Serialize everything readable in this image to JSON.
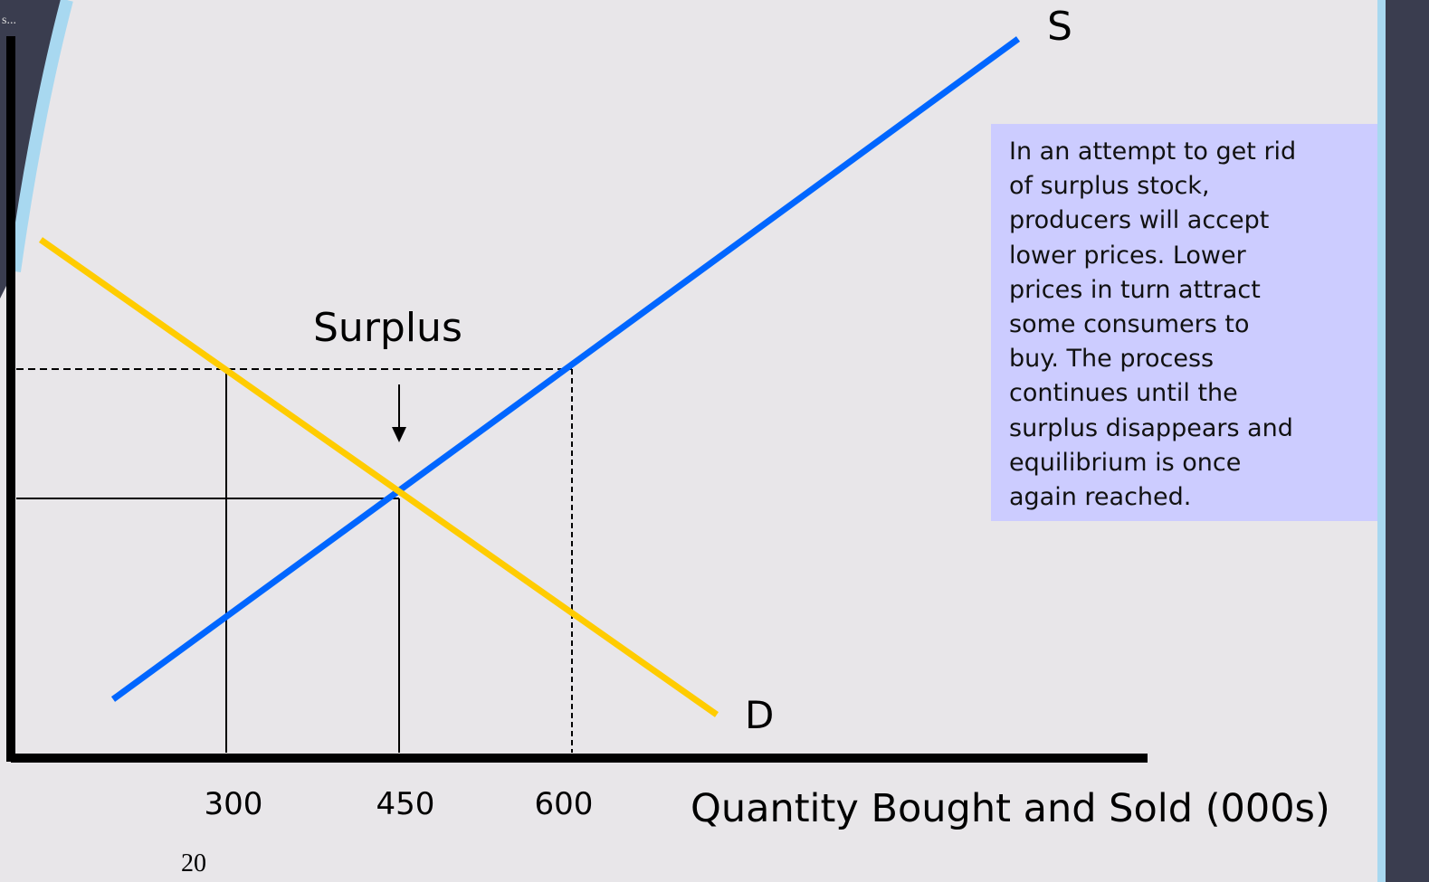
{
  "slide": {
    "corner_text": "s...",
    "supply_label": "S",
    "demand_label": "D",
    "surplus_label": "Surplus",
    "quantity_labels": [
      "300",
      "450",
      "600"
    ],
    "x_axis_title": "Quantity Bought and Sold (000s)",
    "page_number": "20",
    "note_lines": [
      "In an attempt to get rid",
      "of surplus stock,",
      "producers will accept",
      "lower prices. Lower",
      "prices in turn attract",
      "some consumers to",
      "buy. The process",
      "continues until the",
      "surplus disappears and",
      "equilibrium is once",
      "again reached."
    ]
  }
}
